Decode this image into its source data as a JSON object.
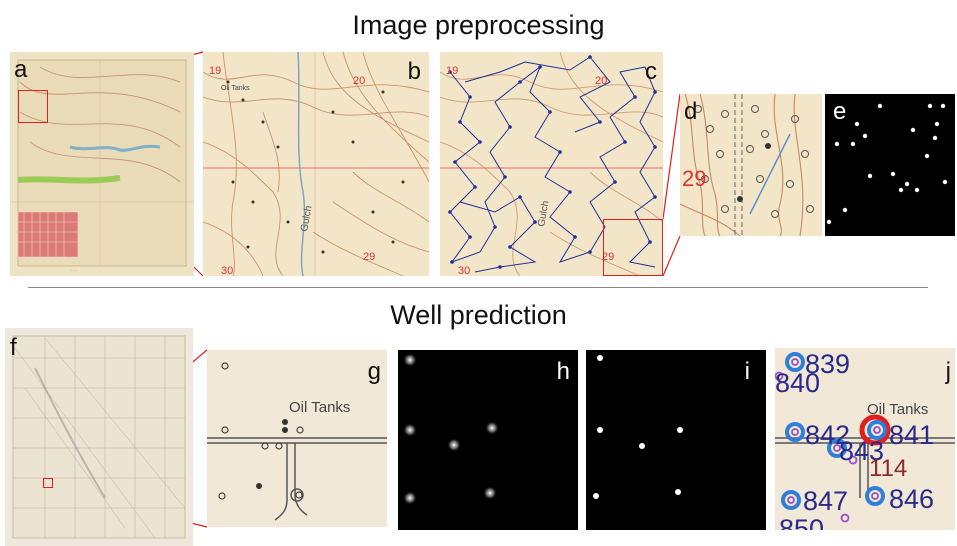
{
  "titles": {
    "top": "Image preprocessing",
    "bottom": "Well prediction"
  },
  "panel_labels": {
    "a": "a",
    "b": "b",
    "c": "c",
    "d": "d",
    "e": "e",
    "f": "f",
    "g": "g",
    "h": "h",
    "i": "i",
    "j": "j"
  },
  "map_text": {
    "b_19": "19",
    "b_20": "20",
    "b_29": "29",
    "b_30": "30",
    "b_oil": "Oil Tanks",
    "b_gulch": "Gulch",
    "c_19": "19",
    "c_20": "20",
    "c_29": "29",
    "c_30": "30",
    "c_gulch": "Gulch",
    "d_29": "29",
    "g_oil": "Oil Tanks",
    "j_839": "839",
    "j_840": "840",
    "j_842": "842",
    "j_841": "841",
    "j_843": "843",
    "j_114": "114",
    "j_847": "847",
    "j_846": "846",
    "j_850": "850",
    "j_oil": "Oil Tanks"
  },
  "colors": {
    "annotation_red": "#e0201e",
    "map_bg": "#f3e6c8",
    "well_blue": "#2f7fd8",
    "label_navy": "#2a2a8a",
    "graph_blue": "#1e2f9a"
  }
}
